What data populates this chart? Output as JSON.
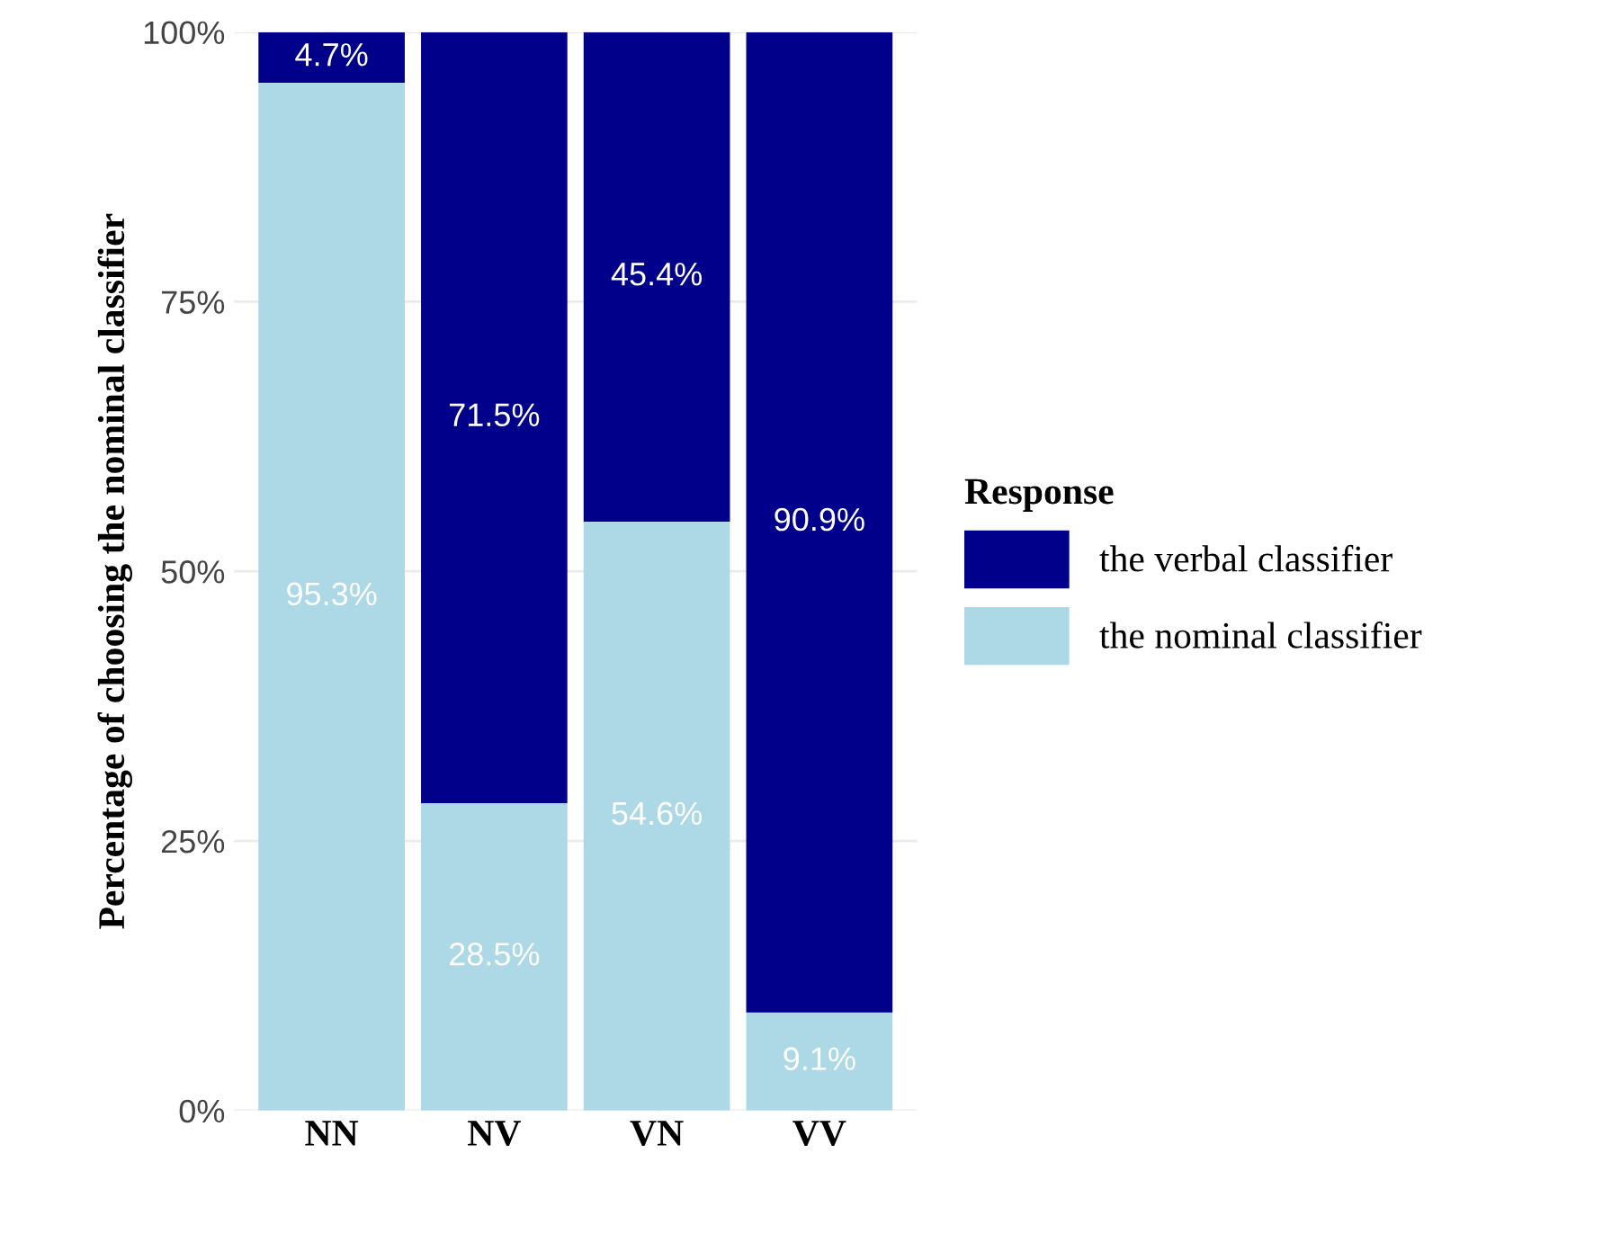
{
  "chart_data": {
    "type": "bar",
    "stacked": true,
    "ylabel": "Percentage of choosing the nominal classifier",
    "legend_title": "Response",
    "categories": [
      "NN",
      "NV",
      "VN",
      "VV"
    ],
    "series": [
      {
        "name": "the nominal classifier",
        "color": "#add8e6",
        "values": [
          95.3,
          28.5,
          54.6,
          9.1
        ],
        "value_labels": [
          "95.3%",
          "28.5%",
          "54.6%",
          "9.1%"
        ]
      },
      {
        "name": "the verbal classifier",
        "color": "#00008b",
        "values": [
          4.7,
          71.5,
          45.4,
          90.9
        ],
        "value_labels": [
          "4.7%",
          "71.5%",
          "45.4%",
          "90.9%"
        ]
      }
    ],
    "ylim": [
      0,
      100
    ],
    "yticks": [
      {
        "value": 0,
        "label": "0%"
      },
      {
        "value": 25,
        "label": "25%"
      },
      {
        "value": 50,
        "label": "50%"
      },
      {
        "value": 75,
        "label": "75%"
      },
      {
        "value": 100,
        "label": "100%"
      }
    ],
    "grid": true,
    "legend": "right"
  }
}
